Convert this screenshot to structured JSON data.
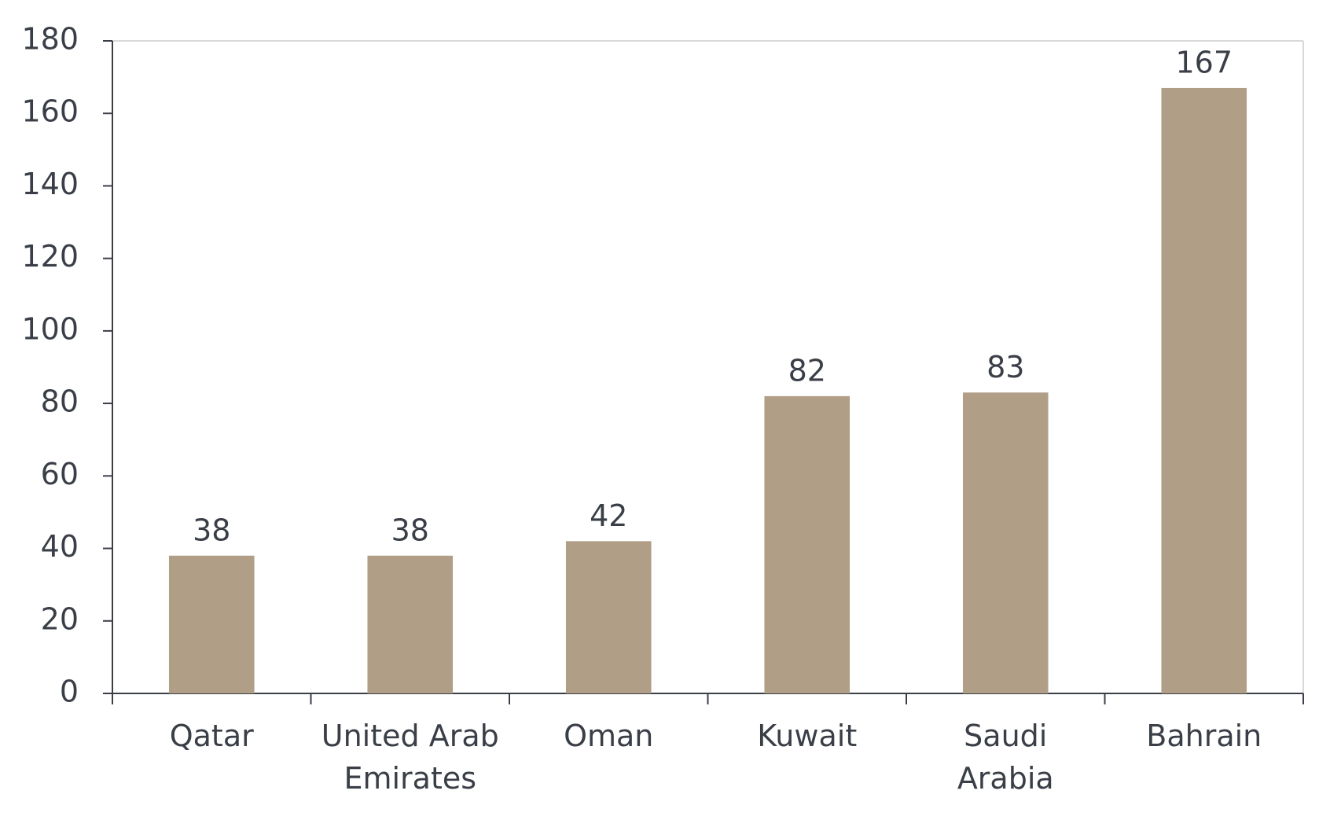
{
  "chart_data": {
    "type": "bar",
    "categories": [
      "Qatar",
      "United Arab\nEmirates",
      "Oman",
      "Kuwait",
      "Saudi\nArabia",
      "Bahrain"
    ],
    "values": [
      38,
      38,
      42,
      82,
      83,
      167
    ],
    "color": "#b09e87",
    "ylim": [
      0,
      180
    ],
    "yticks": [
      0,
      20,
      40,
      60,
      80,
      100,
      120,
      140,
      160,
      180
    ],
    "grid": false
  }
}
